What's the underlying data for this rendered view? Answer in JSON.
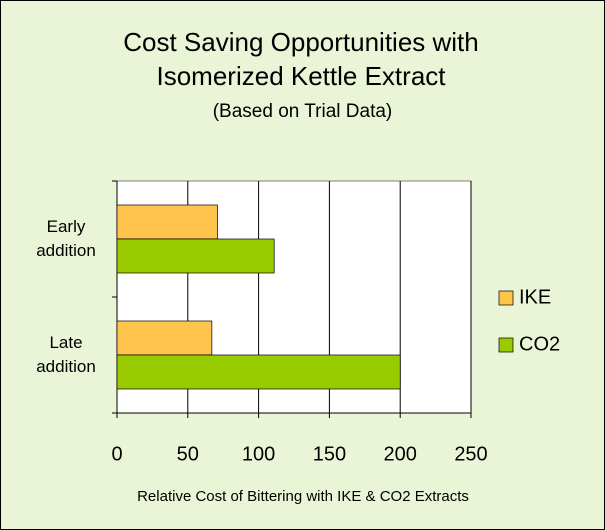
{
  "chart_data": {
    "type": "bar",
    "orientation": "horizontal",
    "title": "Cost Saving Opportunities with Isomerized Kettle Extract",
    "subtitle": "(Based on Trial Data)",
    "x_label": "Relative Cost of Bittering with IKE & CO2 Extracts",
    "categories": [
      "Early addition",
      "Late addition"
    ],
    "series": [
      {
        "name": "IKE",
        "color": "#ffc44c",
        "values": [
          71,
          67
        ]
      },
      {
        "name": "CO2",
        "color": "#99cc00",
        "values": [
          111,
          200
        ]
      }
    ],
    "xlim": [
      0,
      250
    ],
    "xticks": [
      0,
      50,
      100,
      150,
      200,
      250
    ],
    "grid": true,
    "legend": "right"
  }
}
